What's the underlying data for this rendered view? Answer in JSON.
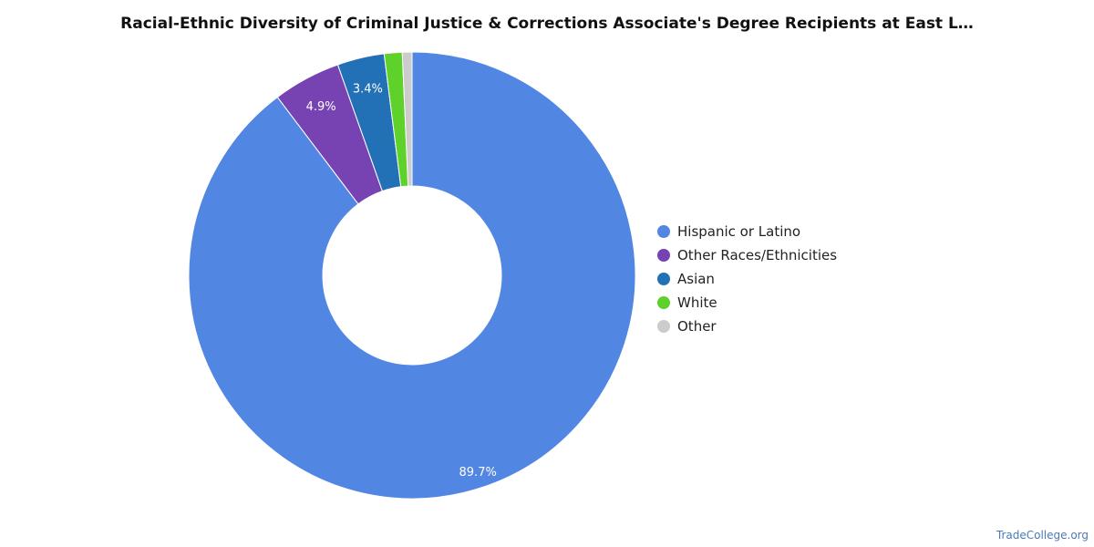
{
  "chart_data": {
    "type": "pie",
    "title": "Racial-Ethnic Diversity of Criminal Justice & Corrections Associate's Degree Recipients at East L…",
    "categories": [
      "Hispanic or Latino",
      "Other Races/Ethnicities",
      "Asian",
      "White",
      "Other"
    ],
    "values": [
      89.7,
      4.9,
      3.4,
      1.3,
      0.7
    ],
    "data_labels": [
      "89.7%",
      "4.9%",
      "3.4%",
      "",
      ""
    ],
    "colors": [
      "#5286e3",
      "#7743b3",
      "#2271b7",
      "#5ed12a",
      "#cccccc"
    ],
    "donut": true,
    "legend": "right"
  },
  "source_label": "TradeCollege.org"
}
